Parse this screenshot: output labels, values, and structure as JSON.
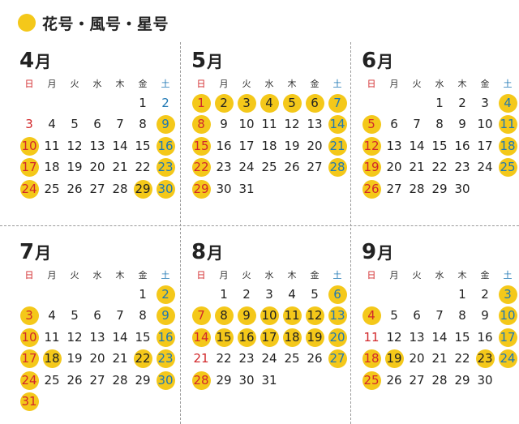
{
  "legend": {
    "label": "花号・風号・星号",
    "color": "#f4c81a"
  },
  "weekdays": [
    "日",
    "月",
    "火",
    "水",
    "木",
    "金",
    "土"
  ],
  "months": [
    {
      "month": "4",
      "suffix": "月",
      "start_weekday": 5,
      "days": 30,
      "marked": [
        9,
        10,
        16,
        17,
        23,
        24,
        29,
        30
      ]
    },
    {
      "month": "5",
      "suffix": "月",
      "start_weekday": 0,
      "days": 31,
      "marked": [
        1,
        2,
        3,
        4,
        5,
        6,
        7,
        8,
        14,
        15,
        21,
        22,
        28,
        29
      ]
    },
    {
      "month": "6",
      "suffix": "月",
      "start_weekday": 3,
      "days": 30,
      "marked": [
        4,
        5,
        11,
        12,
        18,
        19,
        25,
        26
      ]
    },
    {
      "month": "7",
      "suffix": "月",
      "start_weekday": 5,
      "days": 31,
      "marked": [
        2,
        3,
        9,
        10,
        16,
        17,
        18,
        22,
        23,
        24,
        30,
        31
      ]
    },
    {
      "month": "8",
      "suffix": "月",
      "start_weekday": 1,
      "days": 31,
      "marked": [
        6,
        7,
        8,
        9,
        10,
        11,
        12,
        13,
        14,
        15,
        16,
        17,
        18,
        19,
        20,
        27,
        28
      ]
    },
    {
      "month": "9",
      "suffix": "月",
      "start_weekday": 4,
      "days": 30,
      "marked": [
        3,
        4,
        10,
        17,
        18,
        19,
        23,
        24,
        25
      ]
    }
  ]
}
